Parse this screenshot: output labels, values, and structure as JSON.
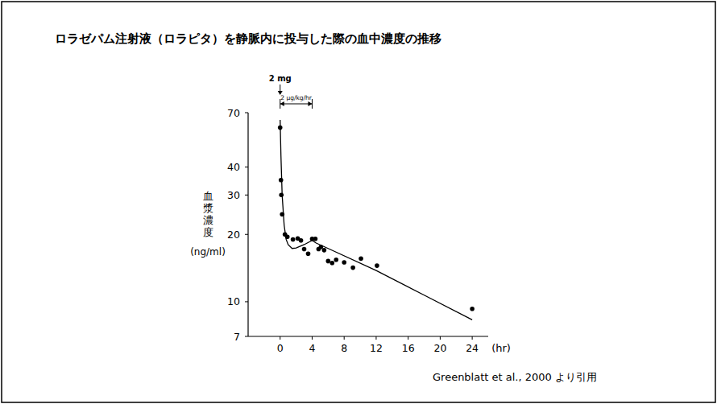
{
  "chart_data": {
    "type": "scatter",
    "title": "ロラゼパム注射液（ロラピタ）を静脈内に投与した際の血中濃度の推移",
    "y_label": "血漿濃度",
    "y_unit": "(ng/ml)",
    "x_label": "(hr)",
    "source": "Greenblatt et al., 2000 より引用",
    "log": "y",
    "grid": false,
    "xlim": [
      -4,
      26
    ],
    "ylim": [
      7,
      70
    ],
    "xticks": [
      0,
      4,
      8,
      12,
      16,
      20,
      24
    ],
    "yticks": [
      7,
      10,
      20,
      30,
      40,
      70
    ],
    "annotations": [
      {
        "text": "2 mg",
        "x": 0
      },
      {
        "text": "2 μg/kg/hr",
        "x_start": 0,
        "x_end": 4
      }
    ],
    "series": [
      {
        "type": "scatter",
        "marker": "circle",
        "color": "#000000",
        "x": [
          0,
          0.1,
          0.15,
          0.25,
          0.6,
          0.9,
          1.6,
          2.2,
          2.6,
          3.0,
          3.5,
          4.0,
          4.4,
          4.8,
          5.1,
          5.5,
          6.0,
          6.5,
          7.0,
          8.0,
          9.1,
          10.1,
          12.1,
          24
        ],
        "values": [
          60,
          35,
          30,
          24.6,
          20,
          19.5,
          19,
          19.2,
          18.8,
          17.2,
          16.4,
          19.1,
          19.1,
          17.2,
          17.6,
          17,
          15.2,
          14.9,
          15.4,
          15,
          14.2,
          15.6,
          14.5,
          9.3
        ]
      },
      {
        "type": "line",
        "line_style": "solid",
        "color": "#000000",
        "x": [
          0,
          0.1,
          0.25,
          0.5,
          0.75,
          1,
          1.5,
          2,
          3,
          4,
          4.5,
          6,
          12,
          18,
          24
        ],
        "values": [
          65,
          45,
          30,
          22,
          19,
          18,
          17.3,
          17.4,
          18,
          18.8,
          18.3,
          17.3,
          13.8,
          10.7,
          8.3
        ]
      }
    ]
  }
}
